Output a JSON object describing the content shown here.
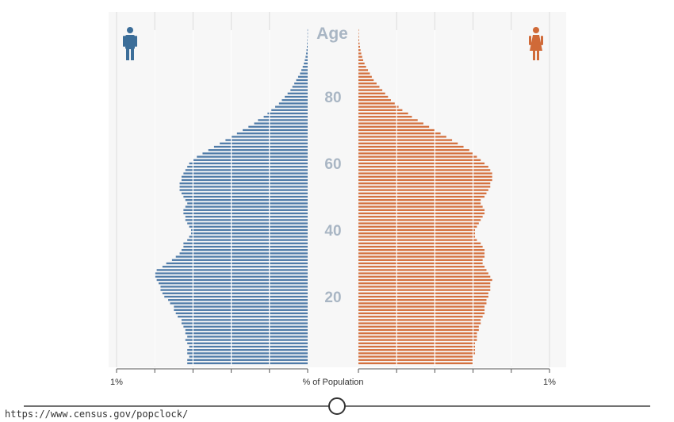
{
  "chart_data": {
    "type": "bar",
    "subtype": "population-pyramid",
    "age_label": "Age",
    "age_tick_labels": [
      "20",
      "40",
      "60",
      "80"
    ],
    "age_ticks": [
      20,
      40,
      60,
      80
    ],
    "xlabel": "% of Population",
    "x_tick_left": "1%",
    "x_tick_right": "1%",
    "x_max": 1.0,
    "grid": true,
    "ages_range": [
      0,
      100
    ],
    "series": [
      {
        "side": "left",
        "color": "#4f7ba8",
        "icon": "male-icon",
        "values": [
          0.63,
          0.63,
          0.62,
          0.63,
          0.63,
          0.62,
          0.63,
          0.64,
          0.63,
          0.64,
          0.64,
          0.65,
          0.66,
          0.66,
          0.68,
          0.69,
          0.7,
          0.7,
          0.72,
          0.73,
          0.75,
          0.76,
          0.77,
          0.77,
          0.78,
          0.79,
          0.8,
          0.8,
          0.79,
          0.76,
          0.74,
          0.71,
          0.69,
          0.67,
          0.66,
          0.65,
          0.65,
          0.63,
          0.62,
          0.61,
          0.61,
          0.62,
          0.63,
          0.64,
          0.64,
          0.65,
          0.65,
          0.64,
          0.63,
          0.64,
          0.65,
          0.66,
          0.67,
          0.67,
          0.67,
          0.66,
          0.66,
          0.65,
          0.64,
          0.63,
          0.62,
          0.6,
          0.58,
          0.55,
          0.52,
          0.49,
          0.46,
          0.43,
          0.4,
          0.37,
          0.34,
          0.31,
          0.28,
          0.26,
          0.23,
          0.21,
          0.19,
          0.17,
          0.15,
          0.135,
          0.12,
          0.105,
          0.09,
          0.08,
          0.07,
          0.06,
          0.05,
          0.04,
          0.033,
          0.026,
          0.02,
          0.015,
          0.011,
          0.008,
          0.006,
          0.004,
          0.003,
          0.002,
          0.001,
          0.001,
          0.001
        ]
      },
      {
        "side": "right",
        "color": "#d4703e",
        "icon": "female-icon",
        "values": [
          0.6,
          0.6,
          0.6,
          0.61,
          0.61,
          0.61,
          0.61,
          0.62,
          0.62,
          0.62,
          0.63,
          0.63,
          0.64,
          0.64,
          0.65,
          0.66,
          0.66,
          0.66,
          0.67,
          0.67,
          0.68,
          0.68,
          0.69,
          0.69,
          0.69,
          0.7,
          0.69,
          0.68,
          0.67,
          0.66,
          0.65,
          0.65,
          0.66,
          0.66,
          0.66,
          0.65,
          0.64,
          0.62,
          0.61,
          0.61,
          0.61,
          0.62,
          0.63,
          0.64,
          0.65,
          0.66,
          0.66,
          0.65,
          0.64,
          0.64,
          0.66,
          0.67,
          0.68,
          0.69,
          0.69,
          0.7,
          0.7,
          0.7,
          0.69,
          0.68,
          0.66,
          0.64,
          0.62,
          0.6,
          0.58,
          0.55,
          0.52,
          0.49,
          0.46,
          0.43,
          0.4,
          0.37,
          0.34,
          0.31,
          0.28,
          0.26,
          0.23,
          0.21,
          0.19,
          0.17,
          0.155,
          0.14,
          0.125,
          0.11,
          0.095,
          0.08,
          0.07,
          0.06,
          0.05,
          0.04,
          0.032,
          0.025,
          0.02,
          0.015,
          0.011,
          0.008,
          0.006,
          0.004,
          0.003,
          0.002,
          0.001
        ]
      }
    ]
  },
  "footer": {
    "url": "https://www.census.gov/popclock/"
  },
  "playback": {
    "label": ""
  }
}
